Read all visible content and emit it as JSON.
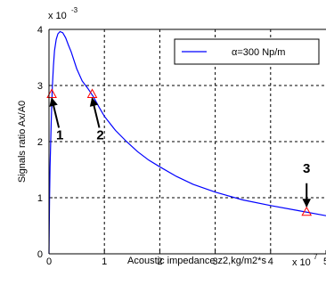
{
  "chart_data": {
    "type": "line",
    "xlabel": "Acoustic impedance z2,kg/m2*s",
    "ylabel": "Signals ratio Ax/A0",
    "x_multiplier": "x 10",
    "x_exponent": "7",
    "y_multiplier": "x 10",
    "y_exponent": "-3",
    "xlim": [
      0,
      5
    ],
    "ylim": [
      0,
      4
    ],
    "xticks": [
      "0",
      "1",
      "2",
      "3",
      "4",
      "5"
    ],
    "yticks": [
      "0",
      "1",
      "2",
      "3",
      "4"
    ],
    "grid": true,
    "legend_position": "top-right",
    "series": [
      {
        "name": "α=300 Np/m",
        "color": "#0000ff",
        "x": [
          0.0,
          0.01,
          0.02,
          0.04,
          0.06,
          0.08,
          0.1,
          0.13,
          0.16,
          0.2,
          0.25,
          0.3,
          0.35,
          0.4,
          0.5,
          0.6,
          0.7,
          0.8,
          0.9,
          1.0,
          1.2,
          1.4,
          1.6,
          1.8,
          2.0,
          2.3,
          2.6,
          3.0,
          3.5,
          4.0,
          4.5,
          5.0
        ],
        "y": [
          0.0,
          0.95,
          1.55,
          2.35,
          2.95,
          3.35,
          3.62,
          3.82,
          3.92,
          3.96,
          3.94,
          3.85,
          3.72,
          3.6,
          3.3,
          3.08,
          2.95,
          2.8,
          2.62,
          2.45,
          2.2,
          2.0,
          1.82,
          1.67,
          1.55,
          1.38,
          1.24,
          1.1,
          0.96,
          0.86,
          0.77,
          0.68
        ]
      }
    ],
    "markers": [
      {
        "label": "1",
        "x": 0.05,
        "y": 2.85,
        "color": "#ff0000"
      },
      {
        "label": "2",
        "x": 0.78,
        "y": 2.85,
        "color": "#ff0000"
      },
      {
        "label": "3",
        "x": 4.65,
        "y": 0.75,
        "color": "#ff0000"
      }
    ]
  }
}
